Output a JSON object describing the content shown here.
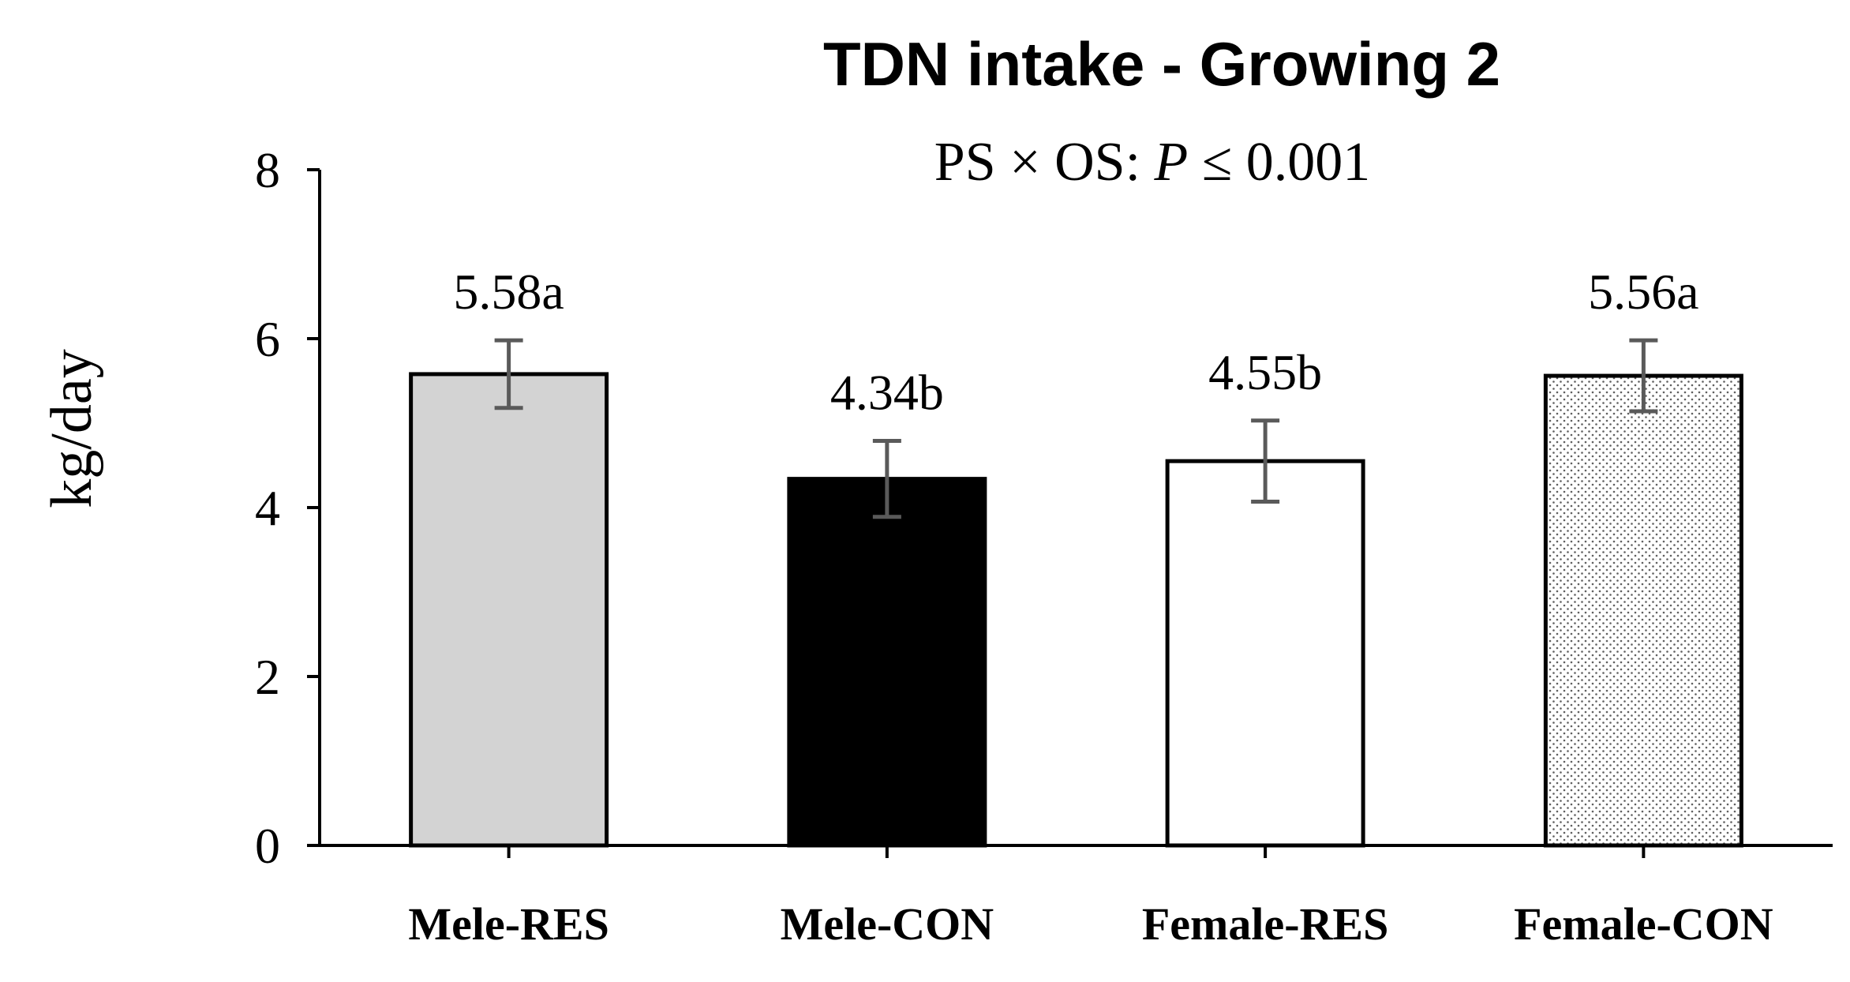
{
  "chart_data": {
    "type": "bar",
    "title": "TDN intake - Growing 2",
    "subtitle": {
      "prefix": "PS × OS: ",
      "italic": "P",
      "suffix": " ≤ 0.001"
    },
    "ylabel": "kg/day",
    "xlabel": "",
    "ylim": [
      0,
      8
    ],
    "yticks": [
      0,
      2,
      4,
      6,
      8
    ],
    "categories": [
      "Mele-RES",
      "Mele-CON",
      "Female-RES",
      "Female-CON"
    ],
    "values": [
      5.58,
      4.34,
      4.55,
      5.56
    ],
    "errors": [
      0.4,
      0.45,
      0.48,
      0.42
    ],
    "data_labels": [
      "5.58a",
      "4.34b",
      "4.55b",
      "5.56a"
    ],
    "fills": [
      "light-gray",
      "black",
      "white",
      "dotted"
    ],
    "colors": {
      "light_gray": "#d3d3d3",
      "black": "#000000",
      "white": "#ffffff",
      "error_bar": "#5a5a5a",
      "dot": "#5f5f5f"
    },
    "grid": false
  }
}
